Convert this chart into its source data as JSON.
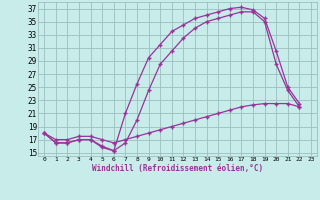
{
  "xlabel": "Windchill (Refroidissement éolien,°C)",
  "bg_color": "#c8ecea",
  "grid_color": "#9bbebe",
  "line_color": "#993399",
  "xmin": -0.5,
  "xmax": 23.5,
  "ymin": 14.5,
  "ymax": 38.0,
  "yticks": [
    15,
    17,
    19,
    21,
    23,
    25,
    27,
    29,
    31,
    33,
    35,
    37
  ],
  "xticks": [
    0,
    1,
    2,
    3,
    4,
    5,
    6,
    7,
    8,
    9,
    10,
    11,
    12,
    13,
    14,
    15,
    16,
    17,
    18,
    19,
    20,
    21,
    22,
    23
  ],
  "curve1_x": [
    0,
    1,
    2,
    3,
    4,
    5,
    6,
    7,
    8,
    9,
    10,
    11,
    12,
    13,
    14,
    15,
    16,
    17,
    18,
    19,
    20,
    21,
    22
  ],
  "curve1_y": [
    18,
    16.5,
    16.5,
    17,
    17,
    15.8,
    15.3,
    21,
    25.5,
    29.5,
    31.5,
    33.5,
    34.5,
    35.5,
    36.0,
    36.5,
    37.0,
    37.2,
    36.8,
    35.5,
    30.5,
    25.0,
    22.5
  ],
  "curve2_x": [
    0,
    1,
    2,
    3,
    4,
    5,
    6,
    7,
    8,
    9,
    10,
    11,
    12,
    13,
    14,
    15,
    16,
    17,
    18,
    19,
    20,
    21,
    22
  ],
  "curve2_y": [
    18,
    16.5,
    16.5,
    17,
    17,
    16.0,
    15.3,
    16.5,
    20.0,
    24.5,
    28.5,
    30.5,
    32.5,
    34.0,
    35.0,
    35.5,
    36.0,
    36.5,
    36.5,
    35.0,
    28.5,
    24.5,
    22.0
  ],
  "curve3_x": [
    0,
    1,
    2,
    3,
    4,
    5,
    6,
    7,
    8,
    9,
    10,
    11,
    12,
    13,
    14,
    15,
    16,
    17,
    18,
    19,
    20,
    21,
    22
  ],
  "curve3_y": [
    18,
    17,
    17,
    17.5,
    17.5,
    17.0,
    16.5,
    17.0,
    17.5,
    18.0,
    18.5,
    19.0,
    19.5,
    20.0,
    20.5,
    21.0,
    21.5,
    22.0,
    22.3,
    22.5,
    22.5,
    22.5,
    22.0
  ]
}
